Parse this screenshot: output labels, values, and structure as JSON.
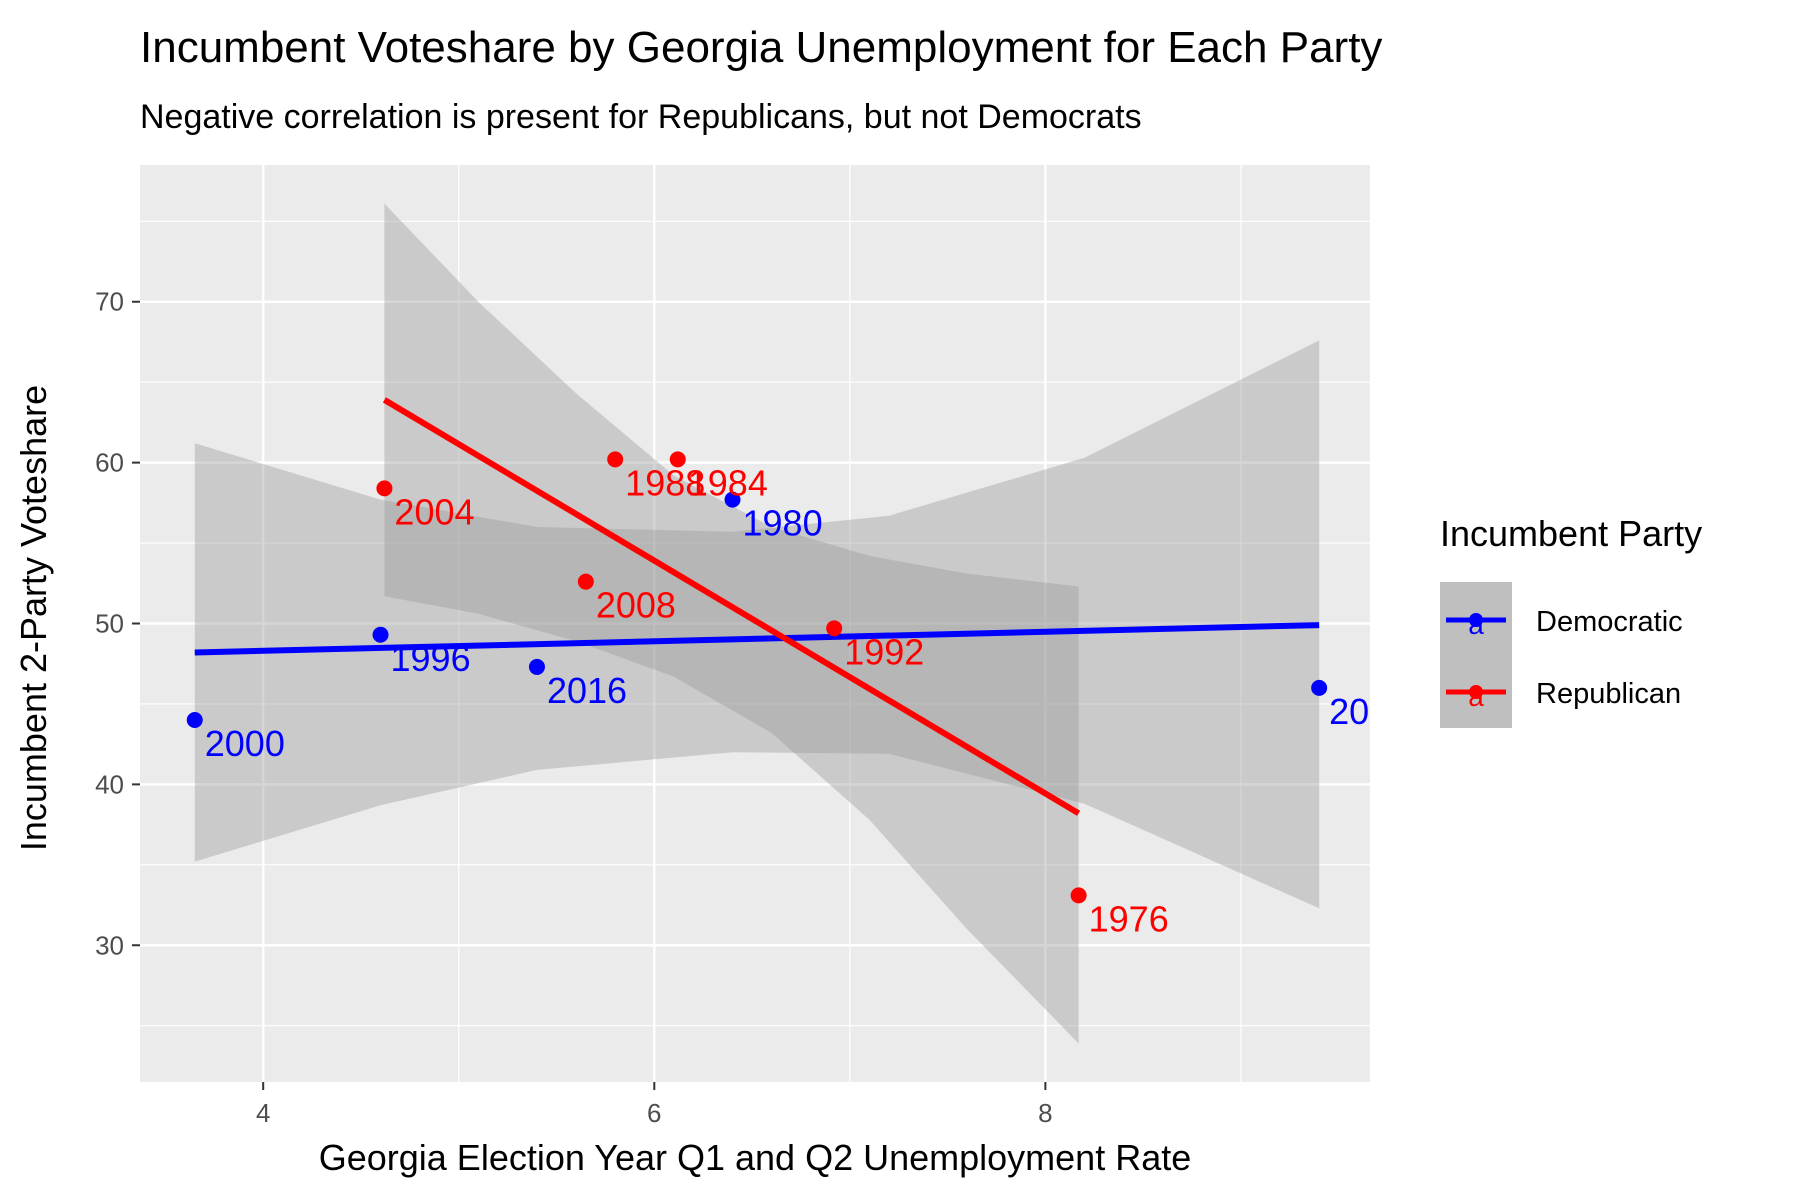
{
  "chart_data": {
    "type": "scatter",
    "title": "Incumbent Voteshare by Georgia Unemployment for Each Party",
    "subtitle": "Negative correlation is present for Republicans, but not Democrats",
    "xlabel": "Georgia Election Year Q1 and Q2 Unemployment Rate",
    "ylabel": "Incumbent 2-Party Voteshare",
    "xlim": [
      3.37,
      9.66
    ],
    "ylim": [
      21.5,
      78.5
    ],
    "x_ticks": [
      4,
      6,
      8
    ],
    "x_tick_labels": [
      "4",
      "6",
      "8"
    ],
    "y_ticks": [
      30,
      40,
      50,
      60,
      70
    ],
    "y_tick_labels": [
      "30",
      "40",
      "50",
      "60",
      "70"
    ],
    "grid": true,
    "legend": {
      "title": "Incumbent Party",
      "placement": "right",
      "glyph": "a",
      "entries": [
        {
          "name": "Democratic",
          "color": "#0000ff"
        },
        {
          "name": "Republican",
          "color": "#ff0000"
        }
      ]
    },
    "colors": {
      "Democratic": "#0000ff",
      "Republican": "#ff0000",
      "ribbon": "#999999",
      "panel": "#ebebeb",
      "grid": "#ffffff"
    },
    "series": [
      {
        "name": "Democratic",
        "points": [
          {
            "x": 3.65,
            "y": 44.0,
            "label": "2000"
          },
          {
            "x": 4.6,
            "y": 49.3,
            "label": "1996"
          },
          {
            "x": 5.4,
            "y": 47.3,
            "label": "2016"
          },
          {
            "x": 6.4,
            "y": 57.7,
            "label": "1980"
          },
          {
            "x": 9.4,
            "y": 46.0,
            "label": "20"
          }
        ],
        "fit": {
          "x": [
            3.65,
            9.4
          ],
          "y": [
            48.2,
            49.9
          ]
        },
        "ribbon": {
          "x": [
            3.65,
            4.6,
            5.4,
            6.4,
            7.2,
            8.2,
            9.4
          ],
          "upper": [
            61.2,
            57.7,
            56.0,
            55.7,
            56.7,
            60.3,
            67.6
          ],
          "lower": [
            35.2,
            38.7,
            40.9,
            42.0,
            41.9,
            38.8,
            32.3
          ]
        }
      },
      {
        "name": "Republican",
        "points": [
          {
            "x": 4.62,
            "y": 58.4,
            "label": "2004"
          },
          {
            "x": 5.8,
            "y": 60.2,
            "label": "1988"
          },
          {
            "x": 6.12,
            "y": 60.2,
            "label": "1984"
          },
          {
            "x": 5.65,
            "y": 52.6,
            "label": "2008"
          },
          {
            "x": 6.92,
            "y": 49.7,
            "label": "1992"
          },
          {
            "x": 8.17,
            "y": 33.1,
            "label": "1976"
          }
        ],
        "fit": {
          "x": [
            4.62,
            8.17
          ],
          "y": [
            63.9,
            38.2
          ]
        },
        "ribbon": {
          "x": [
            4.62,
            5.1,
            5.6,
            6.1,
            6.6,
            7.1,
            7.6,
            8.17
          ],
          "upper": [
            76.1,
            70.0,
            64.3,
            59.2,
            56.0,
            54.2,
            53.1,
            52.3
          ],
          "lower": [
            51.7,
            50.6,
            48.9,
            46.7,
            43.2,
            37.8,
            31.0,
            23.9
          ]
        }
      }
    ]
  }
}
